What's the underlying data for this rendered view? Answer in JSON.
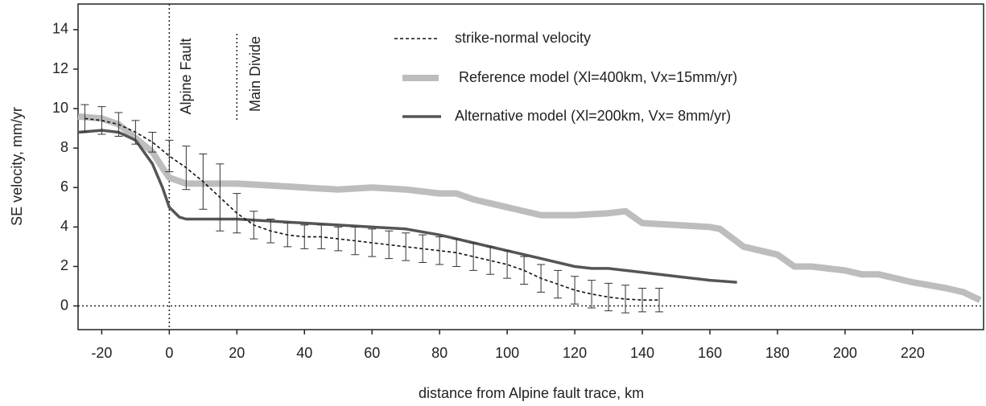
{
  "chart_data": {
    "type": "line",
    "x_label": "distance from Alpine fault trace, km",
    "y_label": "SE velocity, mm/yr",
    "xlim": [
      -27,
      241
    ],
    "ylim": [
      -1.2,
      15.3
    ],
    "xticks": [
      -20,
      0,
      20,
      40,
      60,
      80,
      100,
      120,
      140,
      160,
      180,
      200,
      220
    ],
    "yticks": [
      0,
      2,
      4,
      6,
      8,
      10,
      12,
      14
    ],
    "annotations": [
      {
        "text": "Alpine Fault",
        "x": 0
      },
      {
        "text": "Main Divide",
        "x": 20
      }
    ],
    "series": [
      {
        "name": "strike-normal velocity",
        "color": "#111111",
        "style": "dashed",
        "x": [
          -25,
          -20,
          -15,
          -10,
          -5,
          0,
          5,
          10,
          15,
          20,
          25,
          30,
          35,
          40,
          45,
          50,
          55,
          60,
          65,
          70,
          75,
          80,
          85,
          90,
          95,
          100,
          105,
          110,
          115,
          120,
          125,
          130,
          135,
          140,
          145
        ],
        "values": [
          9.5,
          9.4,
          9.2,
          8.8,
          8.3,
          7.6,
          7.0,
          6.3,
          5.5,
          4.7,
          4.1,
          3.8,
          3.6,
          3.5,
          3.5,
          3.4,
          3.3,
          3.2,
          3.1,
          3.0,
          2.9,
          2.8,
          2.7,
          2.5,
          2.3,
          2.1,
          1.8,
          1.4,
          1.1,
          0.8,
          0.6,
          0.45,
          0.35,
          0.3,
          0.3
        ],
        "errors": [
          0.7,
          0.7,
          0.6,
          0.6,
          0.5,
          0.8,
          1.1,
          1.4,
          1.7,
          1.0,
          0.7,
          0.6,
          0.6,
          0.6,
          0.6,
          0.6,
          0.7,
          0.7,
          0.7,
          0.7,
          0.7,
          0.7,
          0.7,
          0.7,
          0.7,
          0.7,
          0.7,
          0.7,
          0.7,
          0.7,
          0.7,
          0.7,
          0.7,
          0.6,
          0.6
        ]
      },
      {
        "name": "Reference model (Xl=400km, Vx=15mm/yr)",
        "color": "#bdbdbd",
        "style": "thick",
        "x": [
          -27,
          -20,
          -15,
          -10,
          -5,
          -2,
          0,
          5,
          10,
          20,
          30,
          40,
          50,
          60,
          70,
          80,
          85,
          90,
          100,
          110,
          120,
          130,
          135,
          140,
          150,
          160,
          163,
          170,
          175,
          180,
          185,
          190,
          200,
          205,
          210,
          220,
          230,
          235,
          240
        ],
        "values": [
          9.6,
          9.5,
          9.2,
          8.5,
          7.8,
          7.0,
          6.5,
          6.2,
          6.2,
          6.2,
          6.1,
          6.0,
          5.9,
          6.0,
          5.9,
          5.7,
          5.7,
          5.4,
          5.0,
          4.6,
          4.6,
          4.7,
          4.8,
          4.2,
          4.1,
          4.0,
          3.9,
          3.0,
          2.8,
          2.6,
          2.0,
          2.0,
          1.8,
          1.6,
          1.6,
          1.2,
          0.9,
          0.7,
          0.3
        ]
      },
      {
        "name": "Alternative model (Xl=200km, Vx= 8mm/yr)",
        "color": "#555555",
        "style": "solid",
        "x": [
          -27,
          -20,
          -15,
          -10,
          -5,
          -2,
          0,
          3,
          5,
          10,
          20,
          30,
          40,
          50,
          60,
          70,
          80,
          90,
          100,
          110,
          120,
          125,
          130,
          140,
          150,
          160,
          168
        ],
        "values": [
          8.8,
          8.9,
          8.8,
          8.4,
          7.2,
          6.0,
          5.0,
          4.5,
          4.4,
          4.4,
          4.4,
          4.3,
          4.2,
          4.1,
          4.0,
          3.9,
          3.6,
          3.2,
          2.8,
          2.4,
          2.0,
          1.9,
          1.9,
          1.7,
          1.5,
          1.3,
          1.2
        ]
      }
    ]
  }
}
